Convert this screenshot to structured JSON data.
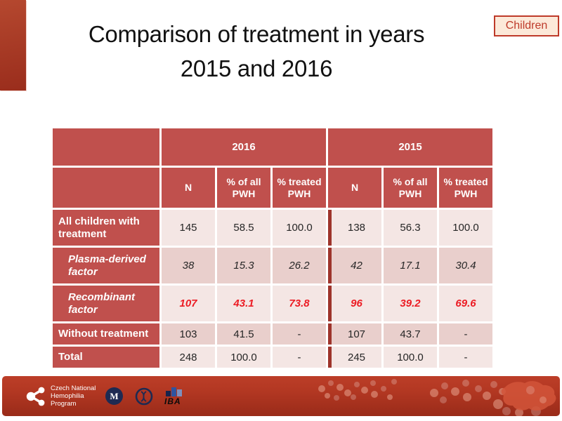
{
  "slide": {
    "title_line1": "Comparison of treatment in years",
    "title_line2": "2015 and 2016",
    "badge": "Children"
  },
  "table": {
    "year_headers": [
      "2016",
      "2015"
    ],
    "sub_headers": [
      "N",
      "% of all PWH",
      "% treated PWH",
      "N",
      "% of all PWH",
      "% treated PWH"
    ],
    "rows": [
      {
        "label": "All children with treatment",
        "style": "normal",
        "values": [
          "145",
          "58.5",
          "100.0",
          "138",
          "56.3",
          "100.0"
        ]
      },
      {
        "label": "Plasma-derived factor",
        "style": "italic",
        "values": [
          "38",
          "15.3",
          "26.2",
          "42",
          "17.1",
          "30.4"
        ]
      },
      {
        "label": "Recombinant factor",
        "style": "italic-red",
        "values": [
          "107",
          "43.1",
          "73.8",
          "96",
          "39.2",
          "69.6"
        ]
      },
      {
        "label": "Without treatment",
        "style": "compact",
        "values": [
          "103",
          "41.5",
          "-",
          "107",
          "43.7",
          "-"
        ]
      },
      {
        "label": "Total",
        "style": "compact",
        "values": [
          "248",
          "100.0",
          "-",
          "245",
          "100.0",
          "-"
        ]
      }
    ]
  },
  "footer": {
    "program_name_lines": [
      "Czech National",
      "Hemophilia",
      "Program"
    ],
    "iba_label": "IBA",
    "university_seal_letter": "M"
  },
  "icons": {
    "molecule": "molecule-logo-icon",
    "university_seal": "university-seal-icon",
    "dna_seal": "dna-seal-icon",
    "czech_map": "czech-map-shape"
  },
  "colors": {
    "header-red": "#C0504D",
    "row-light": "#F4E6E4",
    "row-dark": "#E9CFCC",
    "divider-red": "#9E342B",
    "value-red": "#EC1C24",
    "badge-bg": "#FCE9D9",
    "badge-red": "#BE3A2A",
    "bar-top": "#B5482F",
    "bar-bottom": "#9A2D1C",
    "footer-top": "#BC3E28",
    "footer-bottom": "#992B19",
    "navy": "#1E2A52",
    "data-text": "#262626",
    "title-color": "#111111"
  }
}
